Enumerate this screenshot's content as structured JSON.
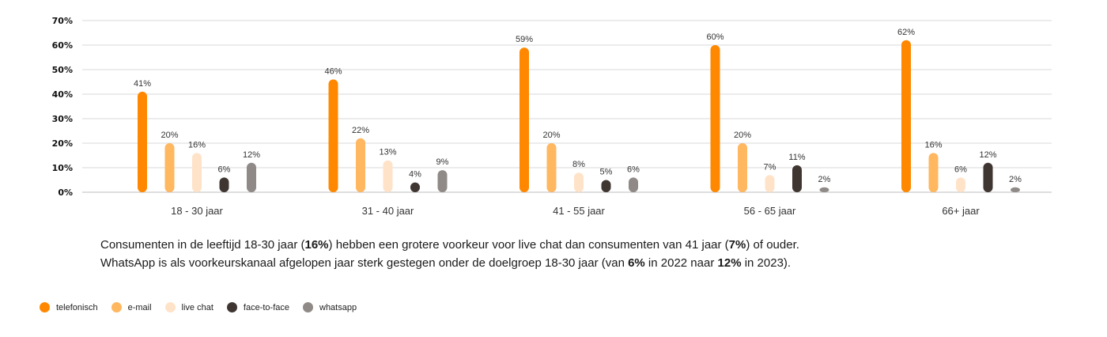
{
  "chart_data": {
    "type": "bar",
    "categories": [
      "18 - 30 jaar",
      "31 - 40 jaar",
      "41 - 55 jaar",
      "56 - 65 jaar",
      "66+ jaar"
    ],
    "series": [
      {
        "name": "telefonisch",
        "color": "#ff8800",
        "values": [
          41,
          46,
          59,
          60,
          62
        ],
        "labels": [
          "41%",
          "46%",
          "59%",
          "60%",
          "62%"
        ]
      },
      {
        "name": "e-mail",
        "color": "#ffb760",
        "values": [
          20,
          22,
          20,
          20,
          16
        ],
        "labels": [
          "20%",
          "22%",
          "20%",
          "20%",
          "16%"
        ]
      },
      {
        "name": "live chat",
        "color": "#ffe3c8",
        "values": [
          16,
          13,
          8,
          7,
          6
        ],
        "labels": [
          "16%",
          "13%",
          "8%",
          "7%",
          "6%"
        ]
      },
      {
        "name": "face-to-face",
        "color": "#3f3632",
        "values": [
          6,
          4,
          5,
          11,
          12
        ],
        "labels": [
          "6%",
          "4%",
          "5%",
          "11%",
          "12%"
        ]
      },
      {
        "name": "whatsapp",
        "color": "#8f8a87",
        "values": [
          12,
          9,
          6,
          2,
          2
        ],
        "labels": [
          "12%",
          "9%",
          "6%",
          "2%",
          "2%"
        ]
      }
    ],
    "yticks": [
      "0%",
      "10%",
      "20%",
      "30%",
      "40%",
      "50%",
      "60%",
      "70%"
    ],
    "ylim": [
      0,
      70
    ],
    "grid": true,
    "legend_position": "bottom-left"
  },
  "caption": {
    "line1": {
      "a": "Consumenten in de leeftijd 18-30 jaar (",
      "b": "16%",
      "c": ") hebben een grotere voorkeur voor live chat dan consumenten van 41 jaar (",
      "d": "7%",
      "e": ")  of ouder."
    },
    "line2": {
      "a": "WhatsApp is als voorkeurskanaal afgelopen jaar sterk gestegen onder de doelgroep 18-30 jaar (van ",
      "b": "6%",
      "c": " in 2022 naar ",
      "d": "12%",
      "e": " in 2023)."
    }
  },
  "legend": [
    {
      "label": "telefonisch",
      "color": "#ff8800"
    },
    {
      "label": "e-mail",
      "color": "#ffb760"
    },
    {
      "label": "live chat",
      "color": "#ffe3c8"
    },
    {
      "label": "face-to-face",
      "color": "#3f3632"
    },
    {
      "label": "whatsapp",
      "color": "#8f8a87"
    }
  ]
}
